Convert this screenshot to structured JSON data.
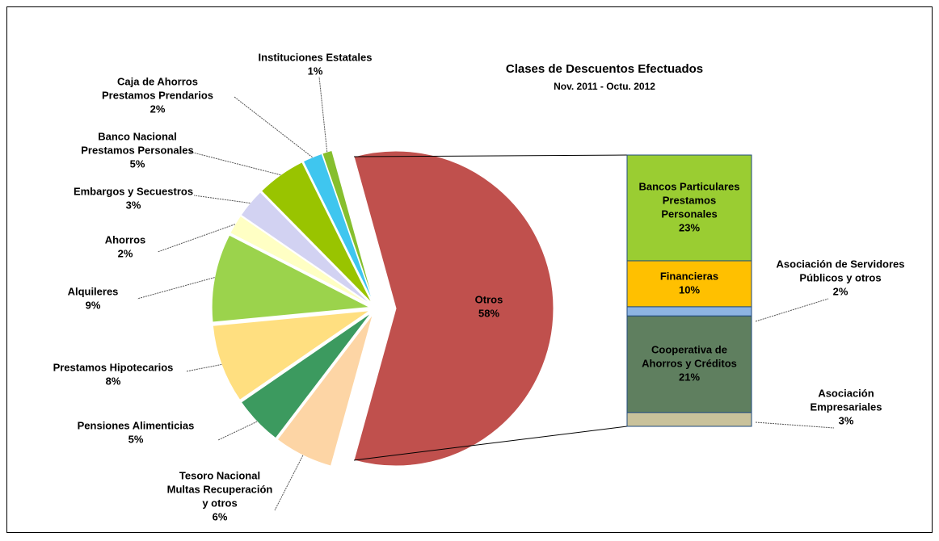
{
  "chart_data": {
    "type": "pie",
    "title": "Clases de Descuentos Efectuados",
    "subtitle": "Nov. 2011 -  Octu. 2012",
    "categories": [
      [
        "Otros"
      ],
      [
        "Tesoro Nacional",
        "Multas Recuperación",
        "y otros"
      ],
      [
        "Pensiones Alimenticias"
      ],
      [
        "Prestamos Hipotecarios"
      ],
      [
        "Alquileres"
      ],
      [
        "Ahorros"
      ],
      [
        "Embargos y Secuestros"
      ],
      [
        "Banco Nacional",
        "Prestamos Personales"
      ],
      [
        "Caja de Ahorros",
        "Prestamos Prendarios"
      ],
      [
        "Instituciones Estatales"
      ]
    ],
    "values": [
      58,
      6,
      5,
      8,
      9,
      2,
      3,
      5,
      2,
      1
    ],
    "value_labels": [
      "58%",
      "6%",
      "5%",
      "8%",
      "9%",
      "2%",
      "3%",
      "5%",
      "2%",
      "1%"
    ],
    "colors": [
      "#c0504d",
      "#fdd5a5",
      "#3c9a5f",
      "#ffdf80",
      "#9bd34c",
      "#ffffc4",
      "#d2d2f2",
      "#99c400",
      "#3fc6ef",
      "#86bf2e"
    ],
    "breakdown": {
      "categories": [
        [
          "Bancos Particulares",
          "Prestamos",
          "Personales"
        ],
        [
          "Financieras"
        ],
        [
          "Asociación de Servidores",
          "Públicos y otros"
        ],
        [
          "Cooperativa de",
          "Ahorros y Créditos"
        ],
        [
          "Asociación",
          "Empresariales"
        ]
      ],
      "values": [
        23,
        10,
        2,
        21,
        3
      ],
      "value_labels": [
        "23%",
        "10%",
        "2%",
        "21%",
        "3%"
      ],
      "colors": [
        "#9acd32",
        "#ffc000",
        "#8db4e2",
        "#5f7f5f",
        "#c9c29b"
      ]
    }
  }
}
